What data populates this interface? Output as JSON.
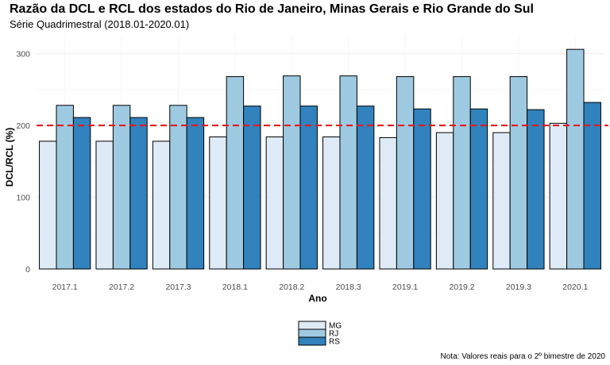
{
  "chart_data": {
    "type": "bar",
    "title": "Razão da DCL e RCL dos estados do Rio de Janeiro, Minas Gerais e Rio Grande do Sul",
    "subtitle": "Série Quadrimestral (2018.01-2020.01)",
    "xlabel": "Ano",
    "ylabel": "DCL/RCL (%)",
    "caption": "Nota: Valores reais para o 2º bimestre de 2020",
    "categories": [
      "2017.1",
      "2017.2",
      "2017.3",
      "2018.1",
      "2018.2",
      "2018.3",
      "2019.1",
      "2019.2",
      "2019.3",
      "2020.1"
    ],
    "series": [
      {
        "name": "MG",
        "color": "#deebf7",
        "values": [
          178,
          178,
          178,
          184,
          184,
          184,
          183,
          190,
          190,
          203
        ]
      },
      {
        "name": "RJ",
        "color": "#9ecae1",
        "values": [
          228,
          228,
          228,
          268,
          269,
          269,
          268,
          268,
          268,
          306
        ]
      },
      {
        "name": "RS",
        "color": "#3182bd",
        "values": [
          211,
          211,
          211,
          227,
          227,
          227,
          223,
          223,
          222,
          232
        ]
      }
    ],
    "yticks": [
      0,
      100,
      200,
      300
    ],
    "ylim": [
      0,
      325
    ],
    "reference_line": {
      "value": 200,
      "color": "#e41a1c",
      "style": "dashed"
    },
    "legend_position": "bottom",
    "grid": true
  }
}
